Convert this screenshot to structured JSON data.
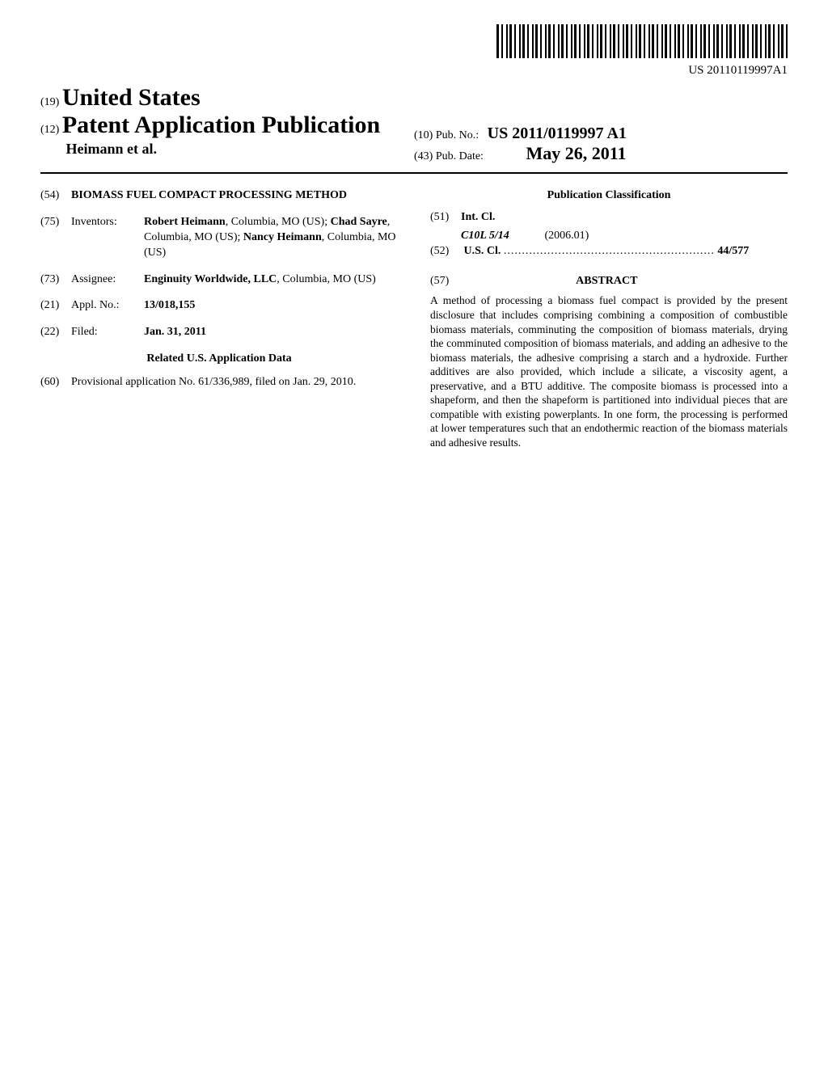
{
  "barcode_number": "US 20110119997A1",
  "header": {
    "country_num": "(19)",
    "country": "United States",
    "doctype_num": "(12)",
    "doctype": "Patent Application Publication",
    "authors": "Heimann et al.",
    "pubno_num": "(10)",
    "pubno_label": "Pub. No.:",
    "pubno": "US 2011/0119997 A1",
    "pubdate_num": "(43)",
    "pubdate_label": "Pub. Date:",
    "pubdate": "May 26, 2011"
  },
  "left": {
    "title_num": "(54)",
    "title": "BIOMASS FUEL COMPACT PROCESSING METHOD",
    "inventors_num": "(75)",
    "inventors_label": "Inventors:",
    "inventors_html": "<b>Robert Heimann</b>, Columbia, MO (US); <b>Chad Sayre</b>, Columbia, MO (US); <b>Nancy Heimann</b>, Columbia, MO (US)",
    "assignee_num": "(73)",
    "assignee_label": "Assignee:",
    "assignee_html": "<b>Enginuity Worldwide, LLC</b>, Columbia, MO (US)",
    "applno_num": "(21)",
    "applno_label": "Appl. No.:",
    "applno": "13/018,155",
    "filed_num": "(22)",
    "filed_label": "Filed:",
    "filed": "Jan. 31, 2011",
    "related_heading": "Related U.S. Application Data",
    "provisional_num": "(60)",
    "provisional": "Provisional application No. 61/336,989, filed on Jan. 29, 2010."
  },
  "right": {
    "classification_heading": "Publication Classification",
    "intcl_num": "(51)",
    "intcl_label": "Int. Cl.",
    "intcl_code": "C10L 5/14",
    "intcl_year": "(2006.01)",
    "uscl_num": "(52)",
    "uscl_label": "U.S. Cl.",
    "uscl_dots": " ..........................................................",
    "uscl_value": " 44/577",
    "abstract_num": "(57)",
    "abstract_heading": "ABSTRACT",
    "abstract": "A method of processing a biomass fuel compact is provided by the present disclosure that includes comprising combining a composition of combustible biomass materials, comminuting the composition of biomass materials, drying the comminuted composition of biomass materials, and adding an adhesive to the biomass materials, the adhesive comprising a starch and a hydroxide. Further additives are also provided, which include a silicate, a viscosity agent, a preservative, and a BTU additive. The composite biomass is processed into a shapeform, and then the shapeform is partitioned into individual pieces that are compatible with existing powerplants. In one form, the processing is performed at lower temperatures such that an endothermic reaction of the biomass materials and adhesive results."
  }
}
